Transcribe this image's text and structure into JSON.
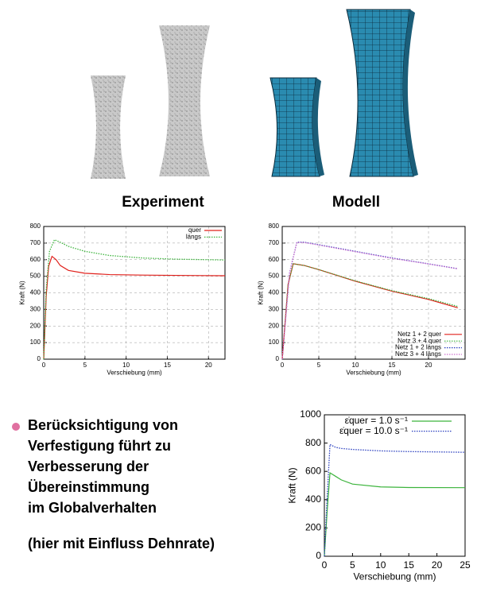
{
  "labels": {
    "experiment": "Experiment",
    "model": "Modell",
    "bullet": [
      "Berücksichtigung von",
      "Verfestigung führt zu",
      "Verbesserung der",
      "Übereinstimmung",
      "im Globalverhalten"
    ],
    "note": "(hier mit Einfluss Dehnrate)"
  },
  "chart_data": [
    {
      "type": "line",
      "xlabel": "Verschiebung (mm)",
      "ylabel": "Kraft (N)",
      "xlim": [
        0,
        22
      ],
      "xticks": [
        0,
        5,
        10,
        15,
        20
      ],
      "ylim": [
        0,
        800
      ],
      "yticks": [
        0,
        100,
        200,
        300,
        400,
        500,
        600,
        700,
        800
      ],
      "grid": true,
      "legend": "upper right",
      "series": [
        {
          "name": "quer",
          "color": "#e0201b",
          "linestyle": "solid",
          "x": [
            0,
            0.3,
            0.6,
            1,
            1.5,
            2,
            3,
            5,
            8,
            12,
            16,
            22
          ],
          "values": [
            0,
            380,
            560,
            620,
            600,
            565,
            535,
            518,
            510,
            507,
            505,
            503
          ]
        },
        {
          "name": "längs",
          "color": "#3cb43c",
          "linestyle": "dotted",
          "x": [
            0,
            0.3,
            0.7,
            1.3,
            2,
            3,
            5,
            8,
            12,
            16,
            22
          ],
          "values": [
            0,
            420,
            650,
            720,
            705,
            680,
            650,
            625,
            610,
            603,
            598
          ]
        }
      ]
    },
    {
      "type": "line",
      "xlabel": "Verschiebung (mm)",
      "ylabel": "Kraft (N)",
      "xlim": [
        0,
        25
      ],
      "xticks": [
        0,
        5,
        10,
        15,
        20
      ],
      "ylim": [
        0,
        800
      ],
      "yticks": [
        0,
        100,
        200,
        300,
        400,
        500,
        600,
        700,
        800
      ],
      "grid": true,
      "legend": "lower right",
      "series": [
        {
          "name": "Netz 1 + 2 quer",
          "color": "#e0201b",
          "linestyle": "solid",
          "x": [
            0,
            0.8,
            1.5,
            3,
            5,
            10,
            15,
            20,
            24
          ],
          "values": [
            0,
            450,
            575,
            565,
            540,
            470,
            410,
            360,
            310
          ]
        },
        {
          "name": "Netz 3 + 4 quer",
          "color": "#3cb43c",
          "linestyle": "dotted",
          "x": [
            0,
            0.8,
            1.5,
            3,
            5,
            10,
            15,
            20,
            24
          ],
          "values": [
            0,
            450,
            575,
            565,
            540,
            472,
            413,
            365,
            318
          ]
        },
        {
          "name": "Netz 1 + 2 längs",
          "color": "#2a3fbf",
          "linestyle": "dotted",
          "x": [
            0,
            1,
            2,
            3,
            5,
            10,
            15,
            20,
            24
          ],
          "values": [
            0,
            520,
            705,
            705,
            690,
            650,
            610,
            575,
            545
          ]
        },
        {
          "name": "Netz 3 + 4 längs",
          "color": "#d070d0",
          "linestyle": "dotted",
          "x": [
            0,
            1,
            2,
            3,
            5,
            10,
            15,
            20,
            24
          ],
          "values": [
            0,
            520,
            703,
            703,
            688,
            648,
            608,
            574,
            545
          ]
        }
      ]
    },
    {
      "type": "line",
      "xlabel": "Verschiebung (mm)",
      "ylabel": "Kraft (N)",
      "xlim": [
        0,
        25
      ],
      "xticks": [
        0,
        5,
        10,
        15,
        20,
        25
      ],
      "ylim": [
        0,
        1000
      ],
      "yticks": [
        0,
        200,
        400,
        600,
        800,
        1000
      ],
      "grid": false,
      "legend": "upper left",
      "series": [
        {
          "name": "ε̇quer =  1.0 s⁻¹",
          "color": "#3cb43c",
          "linestyle": "solid",
          "x": [
            0,
            0.5,
            1,
            2,
            3,
            5,
            10,
            15,
            25
          ],
          "values": [
            0,
            320,
            590,
            565,
            540,
            510,
            490,
            486,
            485
          ]
        },
        {
          "name": "ε̇quer = 10.0 s⁻¹",
          "color": "#2a3fbf",
          "linestyle": "dotted",
          "x": [
            0,
            0.5,
            1,
            2,
            3,
            5,
            10,
            15,
            25
          ],
          "values": [
            0,
            420,
            790,
            770,
            762,
            755,
            745,
            740,
            735
          ]
        }
      ]
    }
  ]
}
